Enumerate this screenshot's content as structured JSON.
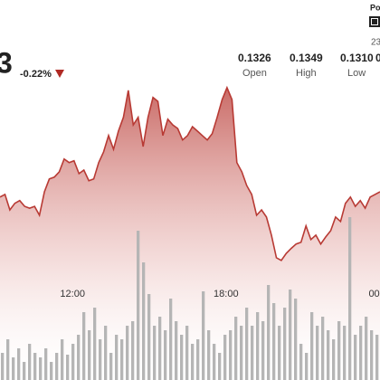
{
  "header": {
    "price": "3",
    "change": "-0.22%",
    "stats": [
      {
        "value": "0.1326",
        "label": "Open"
      },
      {
        "value": "0.1349",
        "label": "High"
      },
      {
        "value": "0.1310",
        "label": "Low"
      },
      {
        "value": "0"
      }
    ],
    "corner_title": "Po",
    "corner_note": "23"
  },
  "chart_data": [
    {
      "type": "area",
      "color": "#b83a34",
      "ylim": [
        0.1283,
        0.13688
      ],
      "xlim": [
        0,
        77
      ],
      "xticks": [
        {
          "value": 14.7,
          "label": "12:00"
        },
        {
          "value": 45.8,
          "label": "18:00"
        },
        {
          "value": 76.1,
          "label": "00:"
        }
      ],
      "values": [
        0.13243,
        0.13249,
        0.13214,
        0.13229,
        0.13235,
        0.13222,
        0.13218,
        0.13222,
        0.13202,
        0.13255,
        0.13284,
        0.13288,
        0.133,
        0.13329,
        0.13321,
        0.13325,
        0.13296,
        0.13304,
        0.1328,
        0.13284,
        0.13321,
        0.13345,
        0.13382,
        0.13351,
        0.13392,
        0.13423,
        0.13484,
        0.13406,
        0.13423,
        0.13357,
        0.13423,
        0.13468,
        0.13459,
        0.13382,
        0.13419,
        0.13406,
        0.13398,
        0.13372,
        0.13382,
        0.13402,
        0.13392,
        0.13382,
        0.13372,
        0.13386,
        0.13423,
        0.13463,
        0.1349,
        0.13463,
        0.13321,
        0.133,
        0.13269,
        0.13249,
        0.13202,
        0.13214,
        0.13198,
        0.13157,
        0.13106,
        0.131,
        0.13116,
        0.13127,
        0.13137,
        0.13141,
        0.13178,
        0.13147,
        0.13157,
        0.13137,
        0.13153,
        0.13167,
        0.13198,
        0.13188,
        0.13229,
        0.13243,
        0.13222,
        0.13235,
        0.13218,
        0.13243,
        0.13249,
        0.13255
      ]
    },
    {
      "type": "bar",
      "color": "#b5b5b5",
      "ylim": [
        0,
        180
      ],
      "values": [
        30,
        45,
        25,
        35,
        20,
        40,
        30,
        25,
        35,
        20,
        30,
        45,
        28,
        40,
        50,
        75,
        55,
        80,
        45,
        60,
        30,
        50,
        45,
        60,
        65,
        165,
        130,
        95,
        60,
        70,
        55,
        90,
        65,
        50,
        60,
        40,
        45,
        98,
        55,
        40,
        30,
        50,
        55,
        70,
        60,
        80,
        60,
        75,
        65,
        105,
        85,
        60,
        80,
        100,
        90,
        40,
        30,
        75,
        60,
        70,
        55,
        45,
        65,
        60,
        180,
        50,
        60,
        70,
        55,
        50
      ]
    }
  ]
}
